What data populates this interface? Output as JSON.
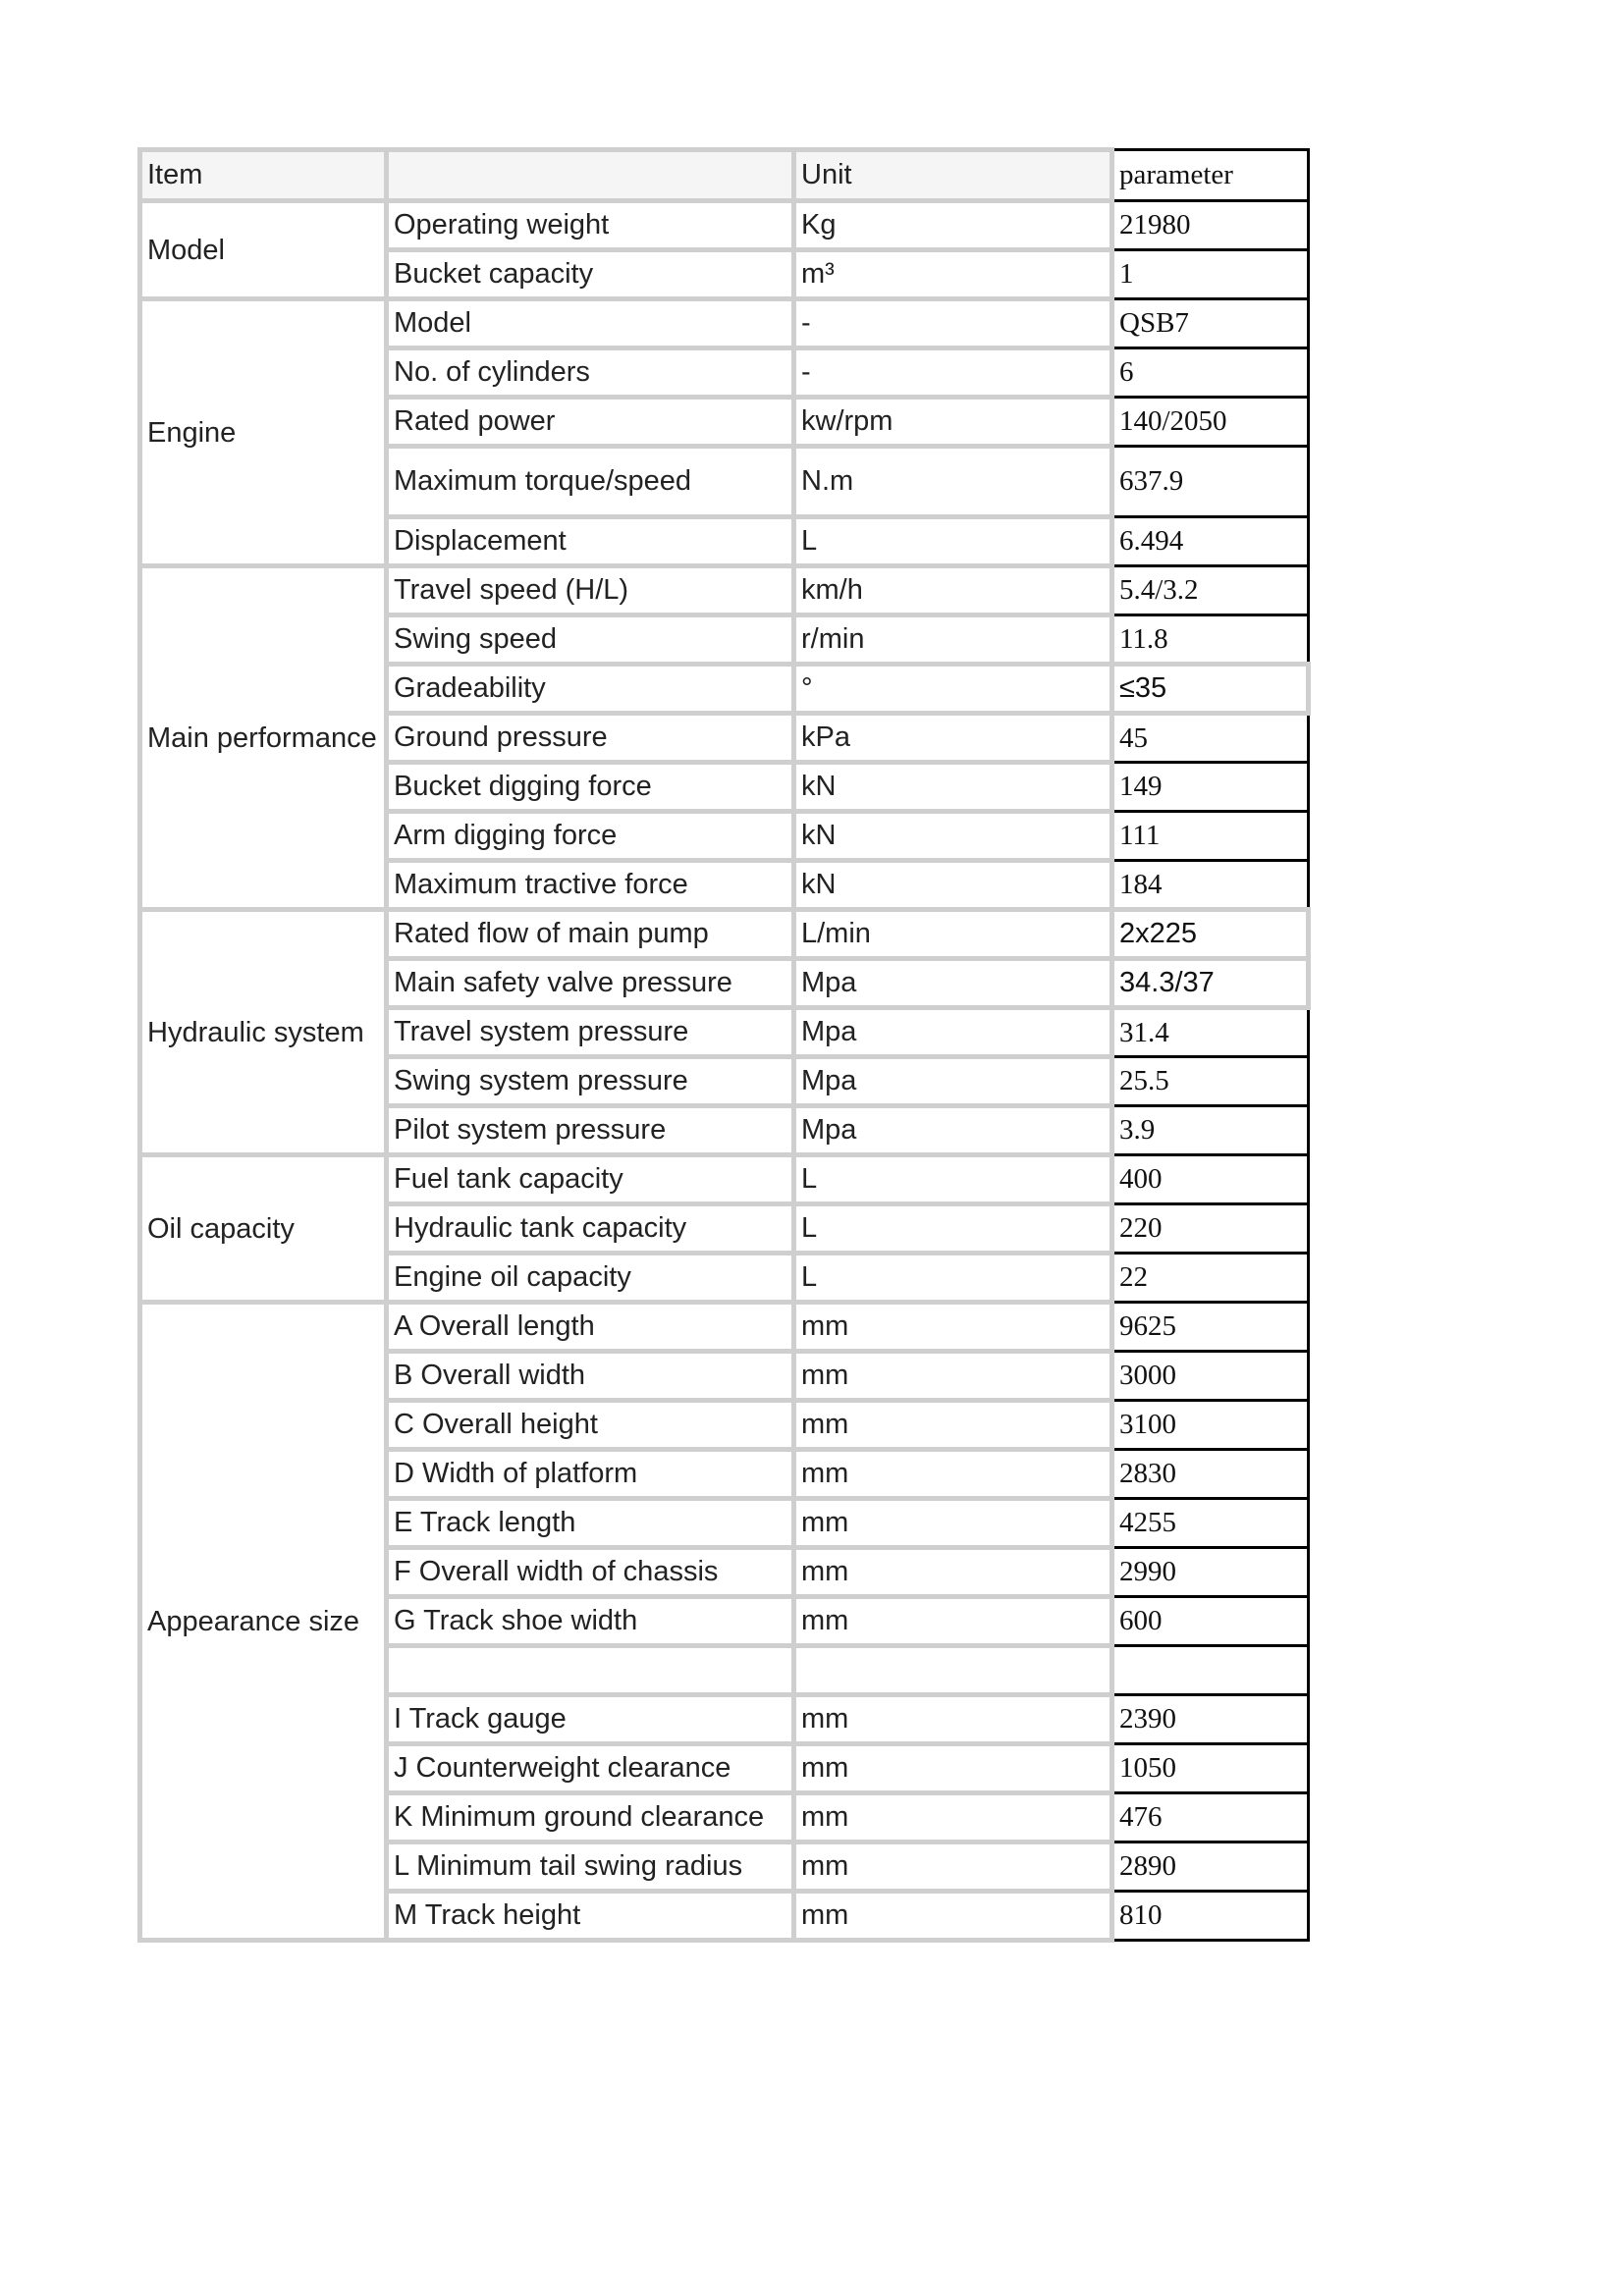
{
  "header": {
    "item": "Item",
    "blank": "",
    "unit": "Unit",
    "parameter": "parameter"
  },
  "groups": [
    {
      "name": "Model",
      "rows": [
        {
          "label": "Operating weight",
          "unit": "Kg",
          "value": "21980"
        },
        {
          "label": "Bucket capacity",
          "unit": "m³",
          "value": "1"
        }
      ]
    },
    {
      "name": "Engine",
      "rows": [
        {
          "label": "Model",
          "unit": "-",
          "value": "QSB7"
        },
        {
          "label": "No. of cylinders",
          "unit": "-",
          "value": "6"
        },
        {
          "label": "Rated power",
          "unit": "kw/rpm",
          "value": "140/2050"
        },
        {
          "label": "Maximum torque/speed",
          "unit": "N.m",
          "value": "637.9",
          "tall": true
        },
        {
          "label": "Displacement",
          "unit": "L",
          "value": "6.494"
        }
      ]
    },
    {
      "name": "Main performance",
      "rows": [
        {
          "label": "Travel speed (H/L)",
          "unit": "km/h",
          "value": "5.4/3.2"
        },
        {
          "label": "Swing speed",
          "unit": "r/min",
          "value": "11.8"
        },
        {
          "label": "Gradeability",
          "unit": "°",
          "value": "≤35",
          "sans": true
        },
        {
          "label": "Ground pressure",
          "unit": "kPa",
          "value": "45"
        },
        {
          "label": "Bucket digging force",
          "unit": "kN",
          "value": "149"
        },
        {
          "label": "Arm digging force",
          "unit": "kN",
          "value": "111"
        },
        {
          "label": "Maximum tractive force",
          "unit": "kN",
          "value": "184"
        }
      ]
    },
    {
      "name": "Hydraulic system",
      "rows": [
        {
          "label": "Rated flow of main pump",
          "unit": "L/min",
          "value": "2x225",
          "sans": true
        },
        {
          "label": "Main safety valve pressure",
          "unit": "Mpa",
          "value": "34.3/37",
          "sans": true
        },
        {
          "label": "Travel system pressure",
          "unit": "Mpa",
          "value": "31.4"
        },
        {
          "label": "Swing system pressure",
          "unit": "Mpa",
          "value": "25.5"
        },
        {
          "label": "Pilot system pressure",
          "unit": "Mpa",
          "value": "3.9"
        }
      ]
    },
    {
      "name": "Oil capacity",
      "rows": [
        {
          "label": "Fuel tank capacity",
          "unit": "L",
          "value": "400"
        },
        {
          "label": "Hydraulic tank capacity",
          "unit": "L",
          "value": "220"
        },
        {
          "label": "Engine oil capacity",
          "unit": "L",
          "value": "22"
        }
      ]
    },
    {
      "name": "Appearance size",
      "rows": [
        {
          "label": "A Overall length",
          "unit": "mm",
          "value": "9625"
        },
        {
          "label": "B Overall width",
          "unit": "mm",
          "value": "3000"
        },
        {
          "label": "C Overall height",
          "unit": "mm",
          "value": "3100"
        },
        {
          "label": "D Width of platform",
          "unit": "mm",
          "value": "2830"
        },
        {
          "label": "E Track length",
          "unit": "mm",
          "value": "4255"
        },
        {
          "label": "F Overall width of chassis",
          "unit": "mm",
          "value": "2990"
        },
        {
          "label": "G Track shoe width",
          "unit": "mm",
          "value": "600"
        },
        {
          "label": "",
          "unit": "",
          "value": ""
        },
        {
          "label": "I Track gauge",
          "unit": "mm",
          "value": "2390"
        },
        {
          "label": "J Counterweight clearance",
          "unit": "mm",
          "value": "1050"
        },
        {
          "label": "K Minimum ground clearance",
          "unit": "mm",
          "value": "476"
        },
        {
          "label": "L Minimum tail swing radius",
          "unit": "mm",
          "value": "2890"
        },
        {
          "label": "M Track height",
          "unit": "mm",
          "value": "810"
        }
      ]
    }
  ]
}
